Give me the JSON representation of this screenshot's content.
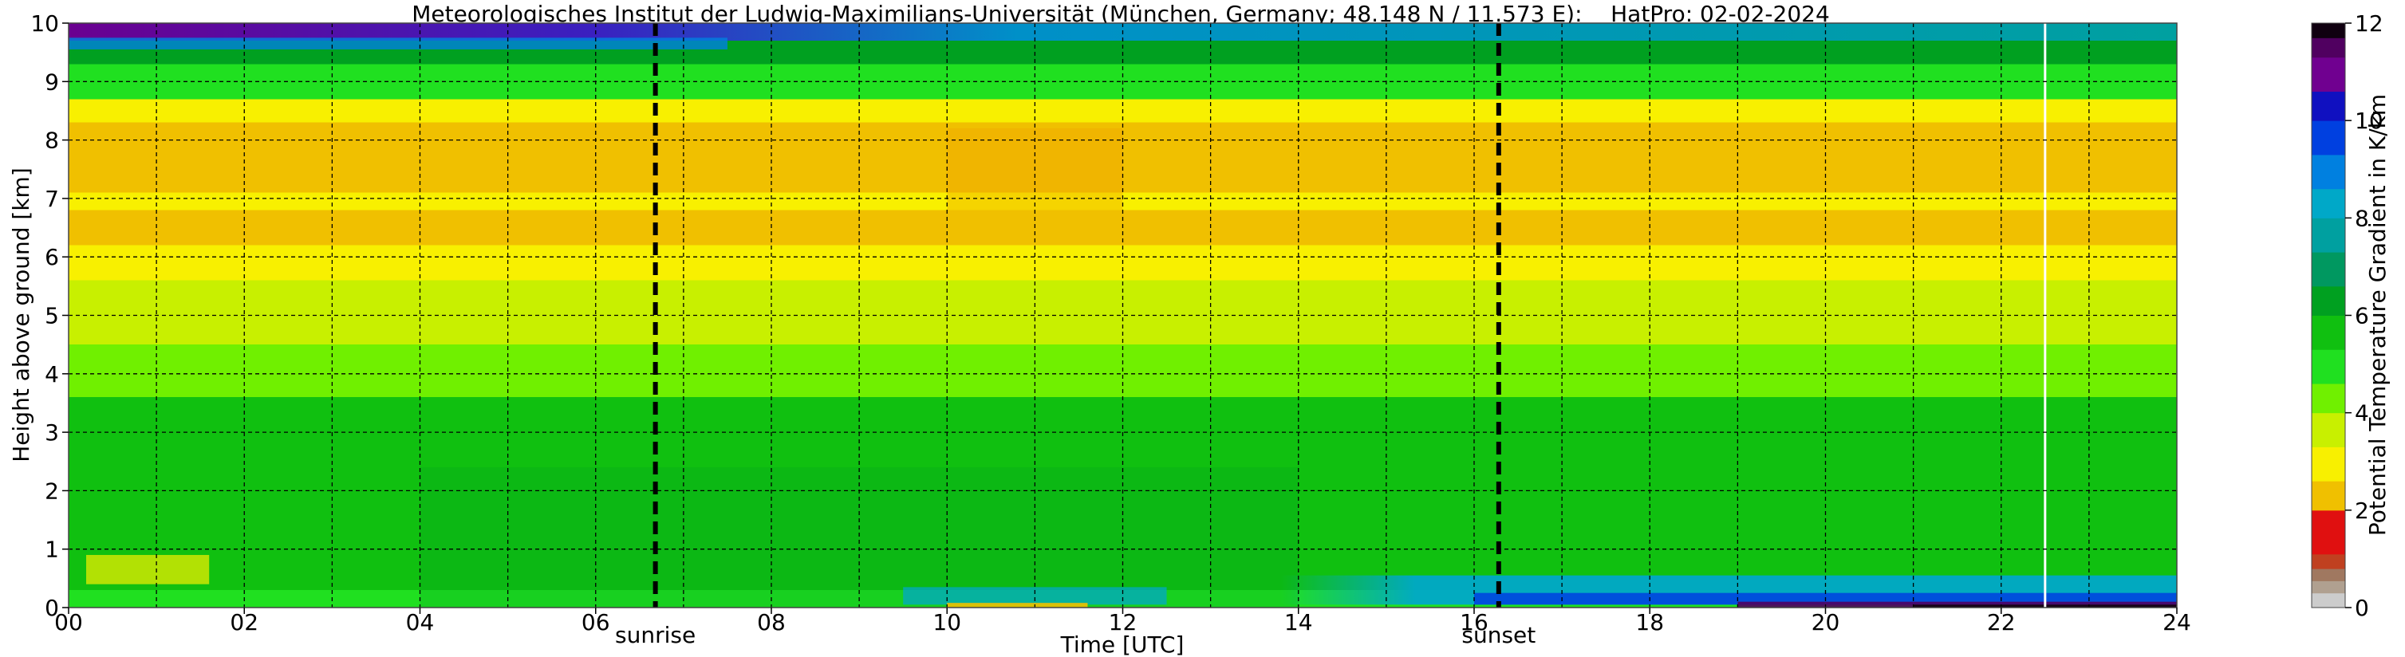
{
  "chart_data": {
    "type": "heatmap",
    "title": "Meteorologisches Institut der Ludwig-Maximilians-Universität (München, Germany; 48.148 N / 11.573 E):    HatPro: 02-02-2024",
    "xlabel": "Time [UTC]",
    "ylabel": "Height above ground [km]",
    "xlim": [
      0,
      24
    ],
    "ylim": [
      0,
      10
    ],
    "x_ticks": [
      "00",
      "02",
      "04",
      "06",
      "08",
      "10",
      "12",
      "14",
      "16",
      "18",
      "20",
      "22",
      "24"
    ],
    "y_ticks": [
      "0",
      "1",
      "2",
      "3",
      "4",
      "5",
      "6",
      "7",
      "8",
      "9",
      "10"
    ],
    "grid": true,
    "colorbar": {
      "label": "Potential Temperature Gradient in K/km",
      "range": [
        0,
        12
      ],
      "ticks": [
        "0",
        "2",
        "4",
        "6",
        "8",
        "10",
        "12"
      ],
      "colors": [
        {
          "from": 0.0,
          "to": 0.3,
          "color": "#cccccc"
        },
        {
          "from": 0.3,
          "to": 0.55,
          "color": "#b0a090"
        },
        {
          "from": 0.55,
          "to": 0.8,
          "color": "#a07860"
        },
        {
          "from": 0.8,
          "to": 1.1,
          "color": "#c04020"
        },
        {
          "from": 1.1,
          "to": 2.0,
          "color": "#e01010"
        },
        {
          "from": 2.0,
          "to": 2.6,
          "color": "#f0c000"
        },
        {
          "from": 2.6,
          "to": 3.3,
          "color": "#f8f000"
        },
        {
          "from": 3.3,
          "to": 4.0,
          "color": "#c8f000"
        },
        {
          "from": 4.0,
          "to": 4.6,
          "color": "#70f000"
        },
        {
          "from": 4.6,
          "to": 5.3,
          "color": "#20e020"
        },
        {
          "from": 5.3,
          "to": 6.0,
          "color": "#10c010"
        },
        {
          "from": 6.0,
          "to": 6.6,
          "color": "#00a020"
        },
        {
          "from": 6.6,
          "to": 7.3,
          "color": "#009860"
        },
        {
          "from": 7.3,
          "to": 8.0,
          "color": "#00a0a0"
        },
        {
          "from": 8.0,
          "to": 8.6,
          "color": "#00a8c8"
        },
        {
          "from": 8.6,
          "to": 9.3,
          "color": "#0080e0"
        },
        {
          "from": 9.3,
          "to": 10.0,
          "color": "#0040e0"
        },
        {
          "from": 10.0,
          "to": 10.6,
          "color": "#1010c0"
        },
        {
          "from": 10.6,
          "to": 11.3,
          "color": "#700090"
        },
        {
          "from": 11.3,
          "to": 11.7,
          "color": "#500060"
        },
        {
          "from": 11.7,
          "to": 12.0,
          "color": "#100010"
        }
      ]
    },
    "annotations": [
      {
        "label": "sunrise",
        "x": 6.68
      },
      {
        "label": "sunset",
        "x": 16.28
      }
    ],
    "height_profile_values": [
      {
        "y": [
          0.0,
          0.3
        ],
        "value": 5.0
      },
      {
        "y": [
          0.3,
          1.0
        ],
        "value": 5.8
      },
      {
        "y": [
          1.0,
          3.6
        ],
        "value": 5.6
      },
      {
        "y": [
          3.6,
          4.5
        ],
        "value": 4.5
      },
      {
        "y": [
          4.5,
          5.6
        ],
        "value": 3.5
      },
      {
        "y": [
          5.6,
          6.2
        ],
        "value": 2.9
      },
      {
        "y": [
          6.2,
          6.8
        ],
        "value": 2.5
      },
      {
        "y": [
          6.8,
          7.1
        ],
        "value": 2.8
      },
      {
        "y": [
          7.1,
          8.3
        ],
        "value": 2.4
      },
      {
        "y": [
          8.3,
          8.7
        ],
        "value": 3.2
      },
      {
        "y": [
          8.7,
          9.3
        ],
        "value": 4.8
      },
      {
        "y": [
          9.3,
          9.7
        ],
        "value": 6.2
      },
      {
        "y": [
          9.7,
          10.0
        ],
        "value": 8.5
      }
    ]
  }
}
